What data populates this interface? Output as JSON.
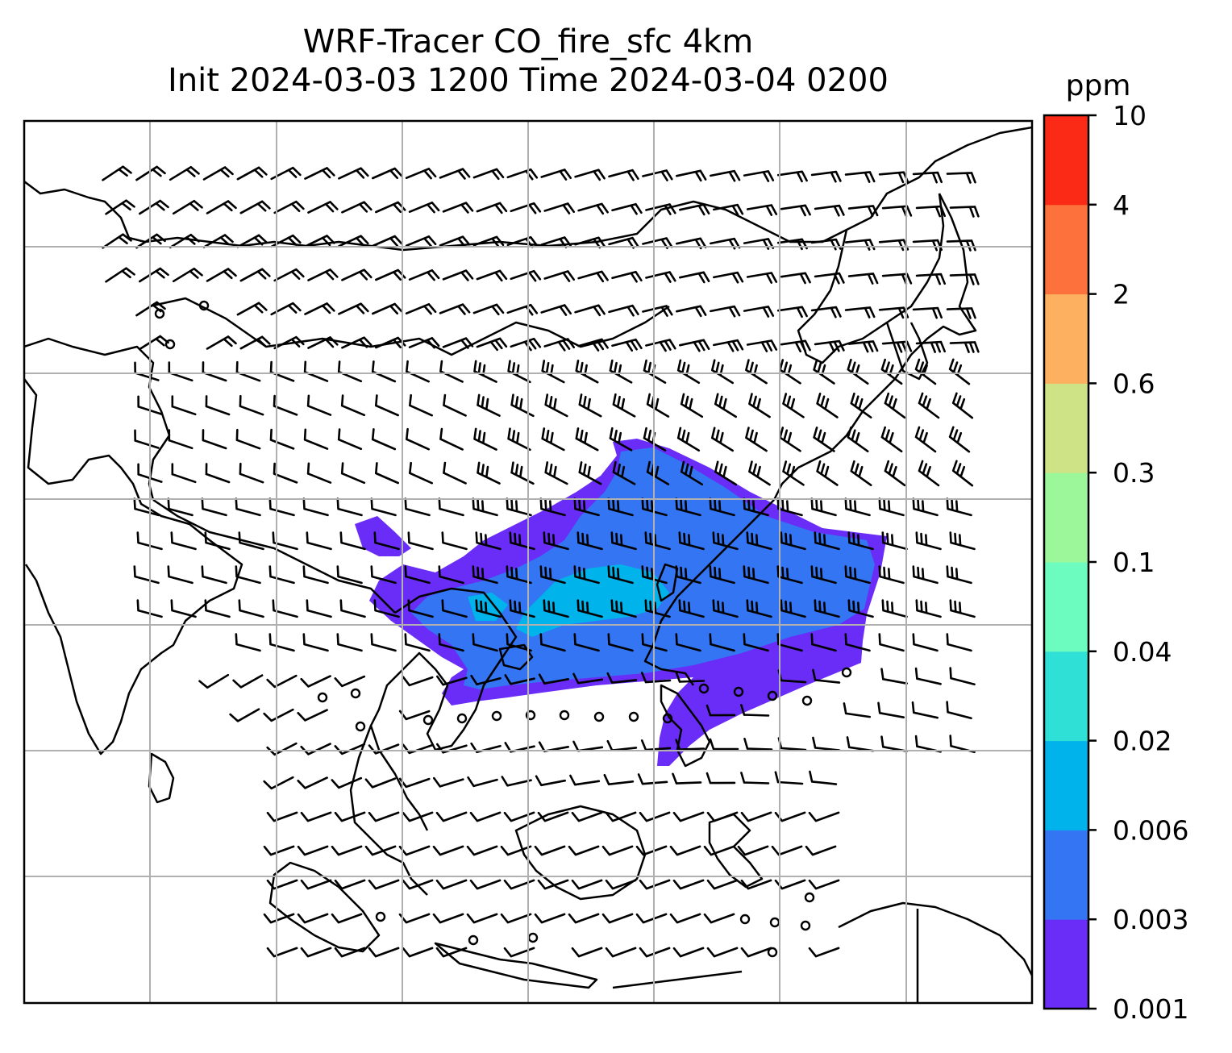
{
  "figure": {
    "title_line1": "WRF-Tracer CO_fire_sfc 4km",
    "title_line2": "Init 2024-03-03 1200 Time 2024-03-04 0200"
  },
  "colorbar": {
    "unit": "ppm",
    "levels": [
      "0.001",
      "0.003",
      "0.006",
      "0.02",
      "0.04",
      "0.1",
      "0.3",
      "0.6",
      "2",
      "4",
      "10"
    ],
    "colors": [
      "#6a2cf7",
      "#3375f3",
      "#00b3eb",
      "#2fe0d6",
      "#6dfcbf",
      "#9bf79a",
      "#cde385",
      "#fdb060",
      "#fc713c",
      "#fa2a17"
    ]
  },
  "map": {
    "gridlines": true,
    "plume_colors": {
      "lowest": "#6a2cf7",
      "low": "#3375f3",
      "mid": "#00b3eb",
      "mid2": "#2fe0d6"
    },
    "coastline_color": "#000000",
    "grid_color": "#b0b0b0"
  }
}
